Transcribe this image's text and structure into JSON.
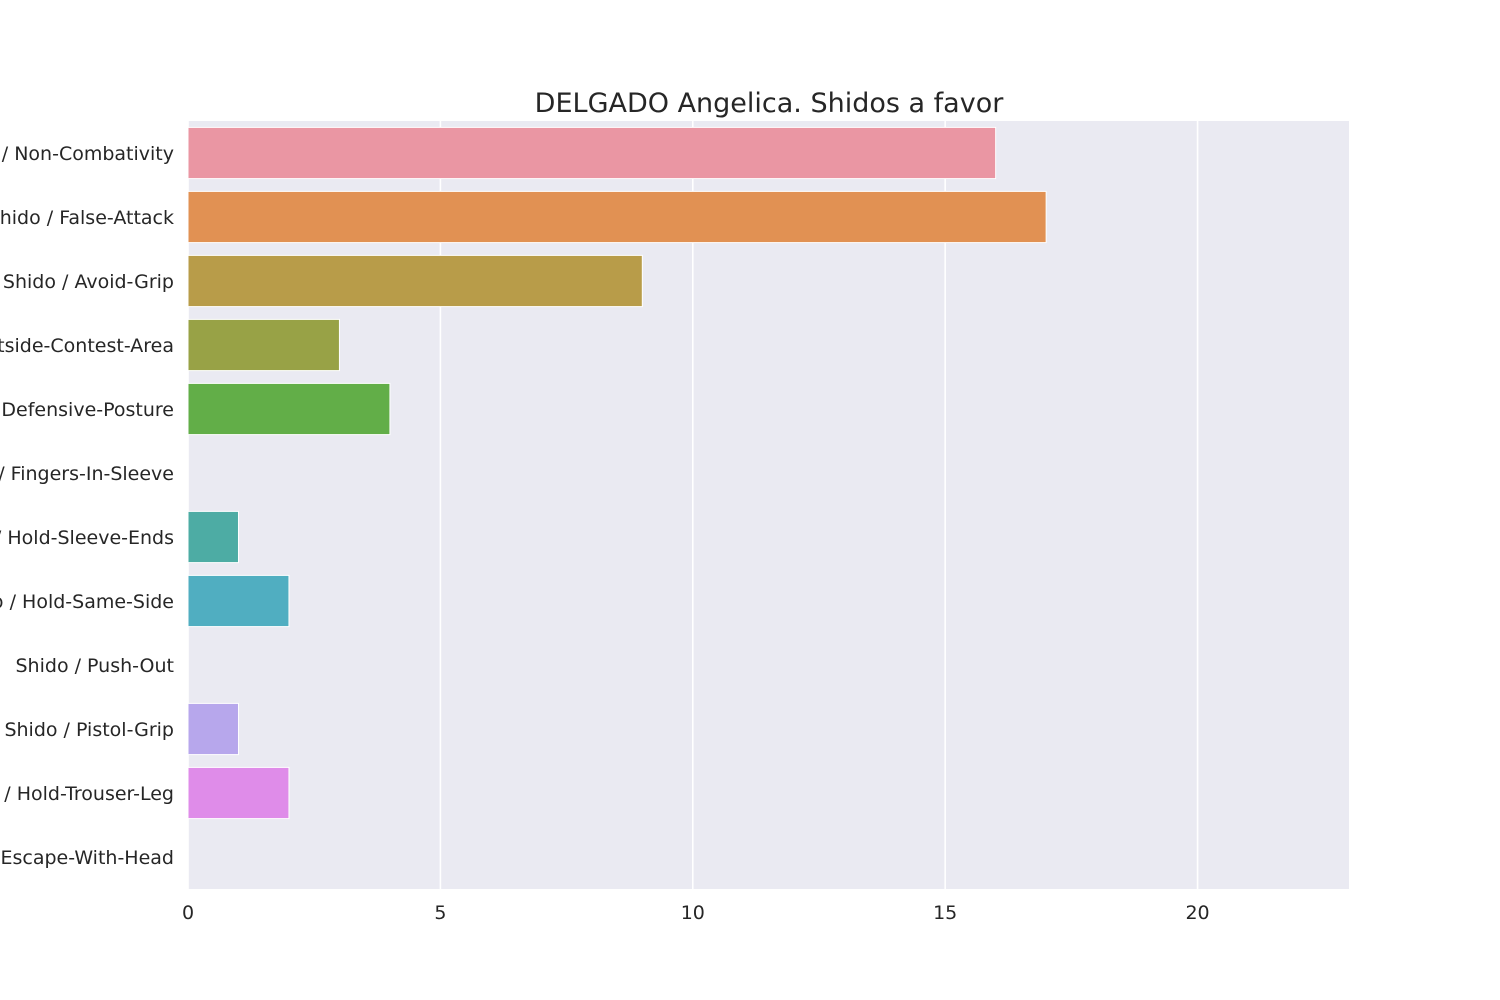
{
  "chart_data": {
    "type": "bar",
    "orientation": "horizontal",
    "title": "DELGADO Angelica. Shidos a favor",
    "xlabel": "",
    "ylabel": "",
    "xlim": [
      0,
      23
    ],
    "x_ticks": [
      "0",
      "5",
      "10",
      "15",
      "20"
    ],
    "grid": true,
    "categories": [
      "Shido / Non-Combativity",
      "Shido / False-Attack",
      "Shido / Avoid-Grip",
      "Shido / Outside-Contest-Area",
      "Shido / Defensive-Posture",
      "Shido / Fingers-In-Sleeve",
      "Shido / Hold-Sleeve-Ends",
      "Shido / Hold-Same-Side",
      "Shido / Push-Out",
      "Shido / Pistol-Grip",
      "Shido / Hold-Trouser-Leg",
      "Shido / Escape-With-Head"
    ],
    "values": [
      16,
      17,
      9,
      3,
      4,
      0,
      1,
      2,
      0,
      1,
      2,
      0
    ],
    "colors": [
      "#ea96a3",
      "#e19153",
      "#b89c49",
      "#98a246",
      "#62ae48",
      "#4bb091",
      "#4daca4",
      "#50aec1",
      "#88a8e5",
      "#b7a7ec",
      "#df8ce9",
      "#e98bc6"
    ],
    "background": "#eaeaf2",
    "grid_color": "#ffffff"
  }
}
